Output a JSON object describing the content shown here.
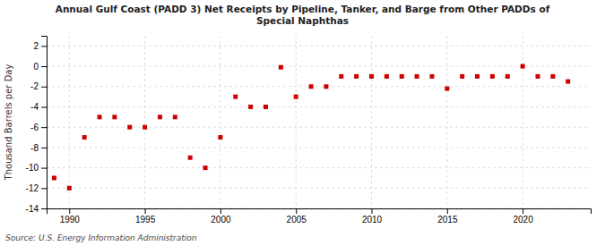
{
  "chart_data": {
    "type": "scatter",
    "title": "Annual Gulf Coast (PADD 3) Net Receipts by Pipeline, Tanker, and Barge from Other PADDs of\nSpecial Naphthas",
    "ylabel": "Thousand Barrels per Day",
    "source": "Source: U.S. Energy Information Administration",
    "color": "#cc0000",
    "marker": "square",
    "grid": true,
    "x": [
      1989,
      1990,
      1991,
      1992,
      1993,
      1994,
      1995,
      1996,
      1997,
      1998,
      1999,
      2000,
      2001,
      2002,
      2003,
      2004,
      2005,
      2006,
      2007,
      2008,
      2009,
      2010,
      2011,
      2012,
      2013,
      2014,
      2015,
      2016,
      2017,
      2018,
      2019,
      2020,
      2021,
      2022,
      2023
    ],
    "values": [
      -11.0,
      -12.0,
      -7.0,
      -5.0,
      -5.0,
      -6.0,
      -6.0,
      -5.0,
      -5.0,
      -9.0,
      -10.0,
      -7.0,
      -3.0,
      -4.0,
      -4.0,
      -0.1,
      -3.0,
      -2.0,
      -2.0,
      -1.0,
      -1.0,
      -1.0,
      -1.0,
      -1.0,
      -1.0,
      -1.0,
      -2.2,
      -1.0,
      -1.0,
      -1.0,
      -1.0,
      0.0,
      -1.0,
      -1.0,
      -1.5
    ],
    "xlim": [
      1988.5,
      2024.5
    ],
    "ylim": [
      -14,
      3
    ],
    "yticks": [
      -14,
      -12,
      -10,
      -8,
      -6,
      -4,
      -2,
      0,
      2
    ],
    "xticks": [
      1990,
      1995,
      2000,
      2005,
      2010,
      2015,
      2020
    ]
  }
}
